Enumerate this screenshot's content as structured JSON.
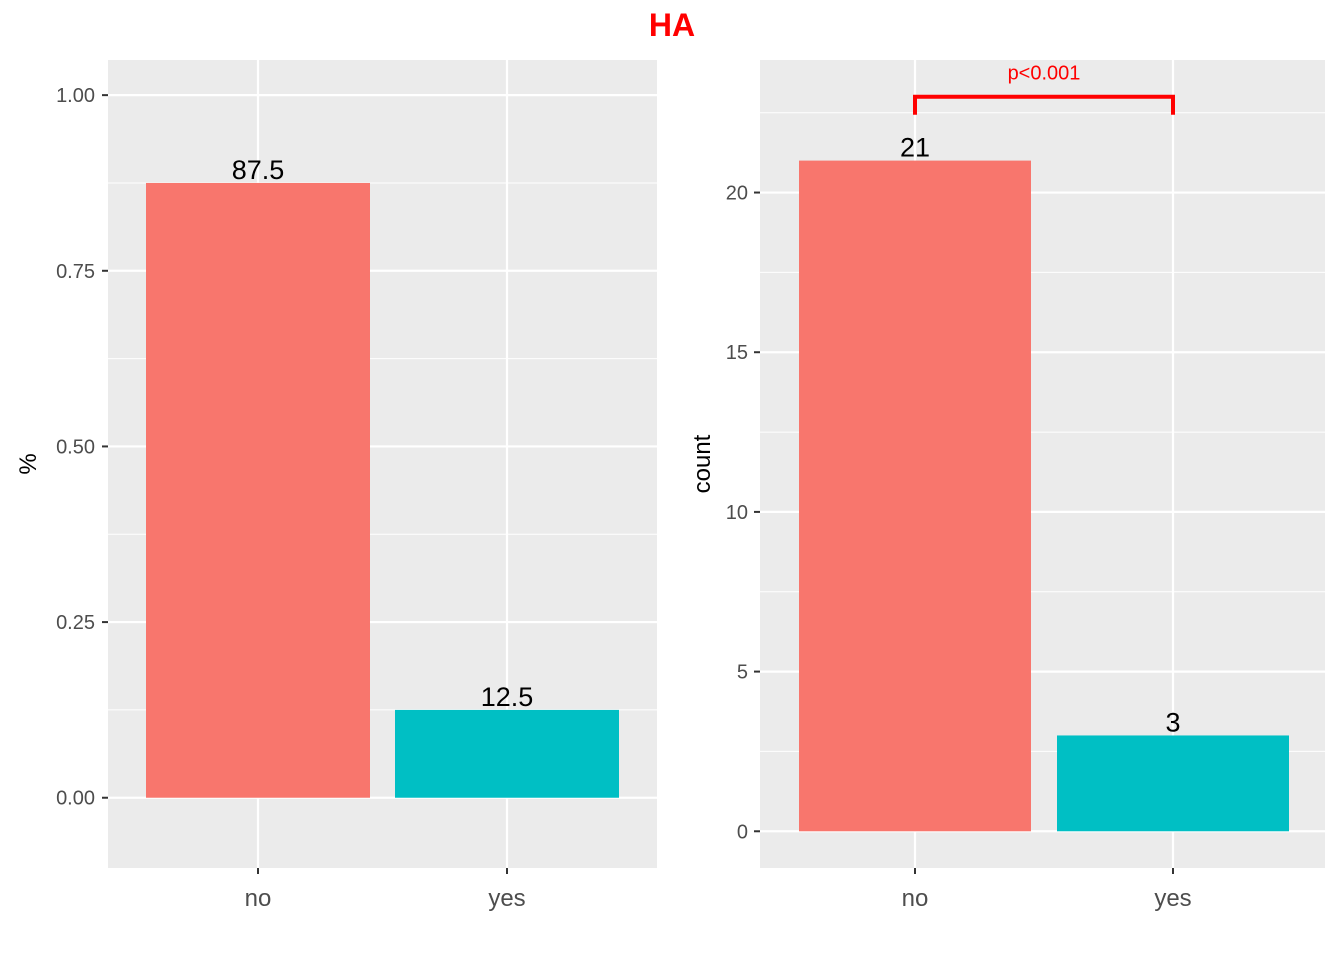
{
  "title": "HA",
  "colors": {
    "title": "#FF0000",
    "panel_bg": "#EBEBEB",
    "grid": "#FFFFFF",
    "no": "#F8766D",
    "yes": "#00BFC4",
    "annotation": "#FF0000",
    "axis_text": "#4D4D4D",
    "label_text": "#000000"
  },
  "chart_data": [
    {
      "type": "bar",
      "panel": "left",
      "title": "",
      "xlabel": "",
      "ylabel": "%",
      "categories": [
        "no",
        "yes"
      ],
      "values": [
        0.875,
        0.125
      ],
      "data_labels": [
        "87.5",
        "12.5"
      ],
      "ylim": [
        -0.1,
        1.05
      ],
      "yticks": [
        0.0,
        0.25,
        0.5,
        0.75,
        1.0
      ],
      "ytick_labels": [
        "0.00",
        "0.25",
        "0.50",
        "0.75",
        "1.00"
      ],
      "grid": true,
      "legend": "none"
    },
    {
      "type": "bar",
      "panel": "right",
      "title": "",
      "xlabel": "",
      "ylabel": "count",
      "categories": [
        "no",
        "yes"
      ],
      "values": [
        21,
        3
      ],
      "data_labels": [
        "21",
        "3"
      ],
      "ylim": [
        -1.15,
        24.15
      ],
      "yticks": [
        0,
        5,
        10,
        15,
        20
      ],
      "ytick_labels": [
        "0",
        "5",
        "10",
        "15",
        "20"
      ],
      "grid": true,
      "legend": "none",
      "annotation": {
        "text": "p<0.001",
        "from": "no",
        "to": "yes",
        "y": 23,
        "tip_y": 22.5
      }
    }
  ]
}
